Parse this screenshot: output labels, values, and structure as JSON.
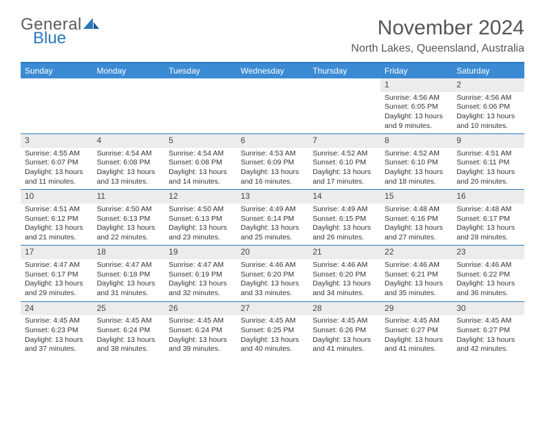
{
  "logo": {
    "line1": "General",
    "line2": "Blue"
  },
  "title": "November 2024",
  "location": "North Lakes, Queensland, Australia",
  "colors": {
    "accent": "#3b8bd4",
    "border": "#2a76bd",
    "daybg": "#ececec",
    "text": "#333333",
    "header_text": "#555555",
    "logo_gray": "#5a5a5a",
    "logo_blue": "#2a76bd"
  },
  "day_names": [
    "Sunday",
    "Monday",
    "Tuesday",
    "Wednesday",
    "Thursday",
    "Friday",
    "Saturday"
  ],
  "weeks": [
    [
      null,
      null,
      null,
      null,
      null,
      {
        "n": "1",
        "sunrise": "4:56 AM",
        "sunset": "6:05 PM",
        "daylight": "13 hours and 9 minutes."
      },
      {
        "n": "2",
        "sunrise": "4:56 AM",
        "sunset": "6:06 PM",
        "daylight": "13 hours and 10 minutes."
      }
    ],
    [
      {
        "n": "3",
        "sunrise": "4:55 AM",
        "sunset": "6:07 PM",
        "daylight": "13 hours and 11 minutes."
      },
      {
        "n": "4",
        "sunrise": "4:54 AM",
        "sunset": "6:08 PM",
        "daylight": "13 hours and 13 minutes."
      },
      {
        "n": "5",
        "sunrise": "4:54 AM",
        "sunset": "6:08 PM",
        "daylight": "13 hours and 14 minutes."
      },
      {
        "n": "6",
        "sunrise": "4:53 AM",
        "sunset": "6:09 PM",
        "daylight": "13 hours and 16 minutes."
      },
      {
        "n": "7",
        "sunrise": "4:52 AM",
        "sunset": "6:10 PM",
        "daylight": "13 hours and 17 minutes."
      },
      {
        "n": "8",
        "sunrise": "4:52 AM",
        "sunset": "6:10 PM",
        "daylight": "13 hours and 18 minutes."
      },
      {
        "n": "9",
        "sunrise": "4:51 AM",
        "sunset": "6:11 PM",
        "daylight": "13 hours and 20 minutes."
      }
    ],
    [
      {
        "n": "10",
        "sunrise": "4:51 AM",
        "sunset": "6:12 PM",
        "daylight": "13 hours and 21 minutes."
      },
      {
        "n": "11",
        "sunrise": "4:50 AM",
        "sunset": "6:13 PM",
        "daylight": "13 hours and 22 minutes."
      },
      {
        "n": "12",
        "sunrise": "4:50 AM",
        "sunset": "6:13 PM",
        "daylight": "13 hours and 23 minutes."
      },
      {
        "n": "13",
        "sunrise": "4:49 AM",
        "sunset": "6:14 PM",
        "daylight": "13 hours and 25 minutes."
      },
      {
        "n": "14",
        "sunrise": "4:49 AM",
        "sunset": "6:15 PM",
        "daylight": "13 hours and 26 minutes."
      },
      {
        "n": "15",
        "sunrise": "4:48 AM",
        "sunset": "6:16 PM",
        "daylight": "13 hours and 27 minutes."
      },
      {
        "n": "16",
        "sunrise": "4:48 AM",
        "sunset": "6:17 PM",
        "daylight": "13 hours and 28 minutes."
      }
    ],
    [
      {
        "n": "17",
        "sunrise": "4:47 AM",
        "sunset": "6:17 PM",
        "daylight": "13 hours and 29 minutes."
      },
      {
        "n": "18",
        "sunrise": "4:47 AM",
        "sunset": "6:18 PM",
        "daylight": "13 hours and 31 minutes."
      },
      {
        "n": "19",
        "sunrise": "4:47 AM",
        "sunset": "6:19 PM",
        "daylight": "13 hours and 32 minutes."
      },
      {
        "n": "20",
        "sunrise": "4:46 AM",
        "sunset": "6:20 PM",
        "daylight": "13 hours and 33 minutes."
      },
      {
        "n": "21",
        "sunrise": "4:46 AM",
        "sunset": "6:20 PM",
        "daylight": "13 hours and 34 minutes."
      },
      {
        "n": "22",
        "sunrise": "4:46 AM",
        "sunset": "6:21 PM",
        "daylight": "13 hours and 35 minutes."
      },
      {
        "n": "23",
        "sunrise": "4:46 AM",
        "sunset": "6:22 PM",
        "daylight": "13 hours and 36 minutes."
      }
    ],
    [
      {
        "n": "24",
        "sunrise": "4:45 AM",
        "sunset": "6:23 PM",
        "daylight": "13 hours and 37 minutes."
      },
      {
        "n": "25",
        "sunrise": "4:45 AM",
        "sunset": "6:24 PM",
        "daylight": "13 hours and 38 minutes."
      },
      {
        "n": "26",
        "sunrise": "4:45 AM",
        "sunset": "6:24 PM",
        "daylight": "13 hours and 39 minutes."
      },
      {
        "n": "27",
        "sunrise": "4:45 AM",
        "sunset": "6:25 PM",
        "daylight": "13 hours and 40 minutes."
      },
      {
        "n": "28",
        "sunrise": "4:45 AM",
        "sunset": "6:26 PM",
        "daylight": "13 hours and 41 minutes."
      },
      {
        "n": "29",
        "sunrise": "4:45 AM",
        "sunset": "6:27 PM",
        "daylight": "13 hours and 41 minutes."
      },
      {
        "n": "30",
        "sunrise": "4:45 AM",
        "sunset": "6:27 PM",
        "daylight": "13 hours and 42 minutes."
      }
    ]
  ],
  "labels": {
    "sunrise": "Sunrise:",
    "sunset": "Sunset:",
    "daylight": "Daylight:"
  }
}
